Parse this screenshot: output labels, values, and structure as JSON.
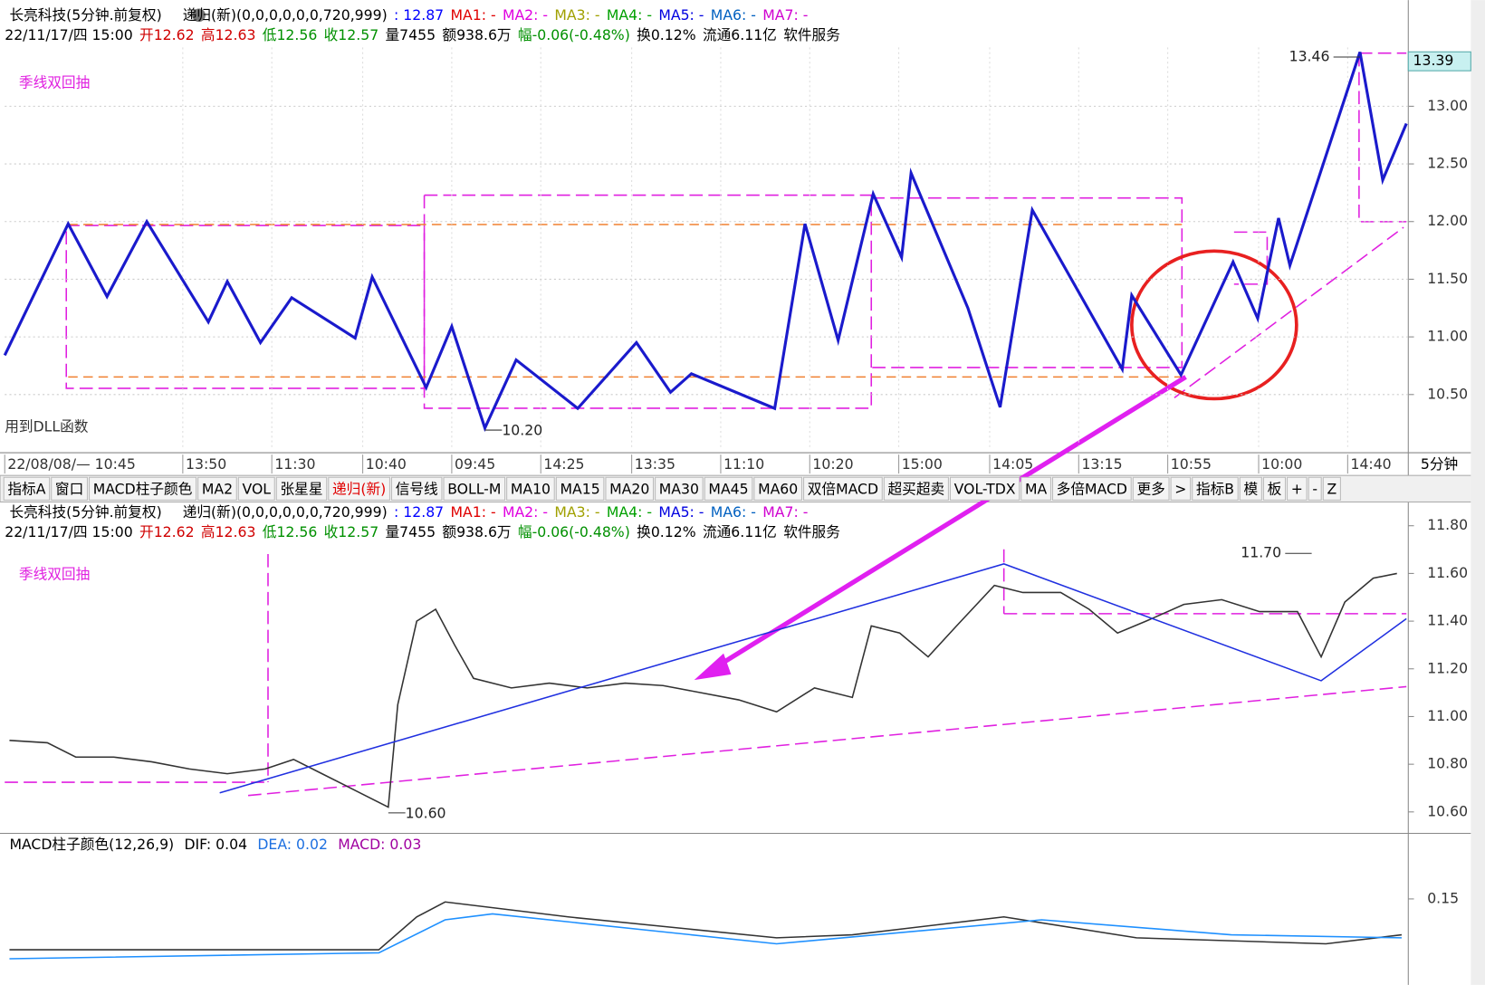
{
  "header": {
    "row1": [
      {
        "text": "长亮科技(5分钟.前复权)",
        "color": "#000"
      },
      {
        "text": "递归(新)(0,0,0,0,0,0,720,999)",
        "color": "#000"
      },
      {
        "text": ": 12.87",
        "color": "#0000ff"
      },
      {
        "text": "MA1: -",
        "color": "#e00000"
      },
      {
        "text": "MA2: -",
        "color": "#e000e0"
      },
      {
        "text": "MA3: -",
        "color": "#a0a000"
      },
      {
        "text": "MA4: -",
        "color": "#00a000"
      },
      {
        "text": "MA5: -",
        "color": "#0000e0"
      },
      {
        "text": "MA6: -",
        "color": "#0060c0"
      },
      {
        "text": "MA7: -",
        "color": "#d000d0"
      }
    ],
    "row2": [
      {
        "text": "22/11/17/四 15:00",
        "color": "#000"
      },
      {
        "text": "开12.62",
        "color": "#d00000"
      },
      {
        "text": "高12.63",
        "color": "#d00000"
      },
      {
        "text": "低12.56",
        "color": "#009000"
      },
      {
        "text": "收12.57",
        "color": "#009000"
      },
      {
        "text": "量7455",
        "color": "#000"
      },
      {
        "text": "额938.6万",
        "color": "#000"
      },
      {
        "text": "幅-0.06(-0.48%)",
        "color": "#009000"
      },
      {
        "text": "换0.12%",
        "color": "#000"
      },
      {
        "text": "流通6.11亿",
        "color": "#000"
      },
      {
        "text": "软件服务",
        "color": "#000"
      }
    ]
  },
  "labels": {
    "strategy": "季线双回抽",
    "dll": "用到DLL函数",
    "period": "5分钟"
  },
  "toolbar": {
    "items": [
      "指标A",
      "窗口",
      "MACD柱子颜色",
      "MA2",
      "VOL",
      "张星星",
      "递归(新)",
      "信号线",
      "BOLL-M",
      "MA10",
      "MA15",
      "MA20",
      "MA30",
      "MA45",
      "MA60",
      "双倍MACD",
      "超买超卖",
      "VOL-TDX",
      "MA",
      "多倍MACD",
      "更多",
      ">",
      "指标B",
      "模",
      "板",
      "+",
      "-",
      "Z"
    ],
    "active": "递归(新)"
  },
  "macd_header": {
    "name": "MACD柱子颜色(12,26,9)",
    "dif": "DIF: 0.04",
    "dea": "DEA: 0.02",
    "macd": "MACD: 0.03"
  },
  "chart_data": [
    {
      "type": "line",
      "xlim": [
        0,
        741
      ],
      "ylim": [
        10.02,
        13.51
      ],
      "yticks": [
        {
          "value": 10.5,
          "label": "10.50"
        },
        {
          "value": 11,
          "label": "11.00"
        },
        {
          "value": 11.5,
          "label": "11.50"
        },
        {
          "value": 12,
          "label": "12.00"
        },
        {
          "value": 12.5,
          "label": "12.50"
        },
        {
          "value": 13,
          "label": "13.00"
        }
      ],
      "xticks": [
        {
          "value": 0,
          "label": "22/08/08/— 10:45"
        },
        {
          "value": 94,
          "label": "13:50"
        },
        {
          "value": 141,
          "label": "11:30"
        },
        {
          "value": 189,
          "label": "10:40"
        },
        {
          "value": 236,
          "label": "09:45"
        },
        {
          "value": 283,
          "label": "14:25"
        },
        {
          "value": 331,
          "label": "13:35"
        },
        {
          "value": 378,
          "label": "11:10"
        },
        {
          "value": 425,
          "label": "10:20"
        },
        {
          "value": 472,
          "label": "15:00"
        },
        {
          "value": 520,
          "label": "14:05"
        },
        {
          "value": 567,
          "label": "13:15"
        },
        {
          "value": 614,
          "label": "10:55"
        },
        {
          "value": 662,
          "label": "10:00"
        },
        {
          "value": 709,
          "label": "14:40"
        }
      ],
      "grid": true,
      "last_price": 13.39,
      "series": [
        {
          "color": "#1a1acc",
          "x": [
            0,
            33.5,
            54,
            75,
            107.5,
            117.5,
            135,
            151.5,
            185,
            194,
            222.5,
            236,
            253.5,
            270,
            302.5,
            333.5,
            351.5,
            362.5,
            406.5,
            422.5,
            440,
            458.5,
            473.5,
            478.5,
            508.5,
            525.5,
            542.5,
            590,
            595,
            621,
            648.5,
            661.5,
            672.5,
            678.5,
            715.5,
            727.5,
            740
          ],
          "values": [
            10.84,
            11.98,
            11.35,
            12.0,
            11.13,
            11.48,
            10.95,
            11.34,
            10.99,
            11.52,
            10.56,
            11.09,
            10.21,
            10.8,
            10.38,
            10.95,
            10.52,
            10.68,
            10.38,
            11.98,
            10.97,
            12.24,
            11.69,
            12.42,
            11.25,
            10.39,
            12.1,
            10.72,
            11.36,
            10.67,
            11.65,
            11.16,
            12.03,
            11.62,
            13.47,
            12.36,
            12.85
          ]
        }
      ],
      "annotations": [
        {
          "x": 715.5,
          "value": 13.46,
          "label": "13.46"
        },
        {
          "x": 253.5,
          "value": 10.2,
          "label": "10.20"
        }
      ]
    },
    {
      "type": "line",
      "xlim": [
        0,
        741
      ],
      "ylim": [
        10.51,
        11.86
      ],
      "yticks": [
        {
          "value": 10.6,
          "label": "10.60"
        },
        {
          "value": 10.8,
          "label": "10.80"
        },
        {
          "value": 11,
          "label": "11.00"
        },
        {
          "value": 11.2,
          "label": "11.20"
        },
        {
          "value": 11.4,
          "label": "11.40"
        },
        {
          "value": 11.6,
          "label": "11.60"
        },
        {
          "value": 11.8,
          "label": "11.80"
        }
      ],
      "grid": false,
      "series": [
        {
          "color": "#333333",
          "x": [
            2.5,
            22.5,
            37.5,
            57.5,
            77.5,
            97.5,
            117.5,
            137.5,
            152.5,
            167.5,
            182.5,
            202.5,
            207.5,
            217.5,
            227.5,
            237.5,
            247.5,
            267.5,
            287.5,
            307.5,
            327.5,
            347.5,
            367.5,
            387.5,
            407.5,
            427.5,
            447.5,
            457.5,
            472.5,
            487.5,
            502.5,
            522.5,
            537.5,
            557.5,
            572.5,
            587.5,
            602.5,
            622.5,
            642.5,
            662.5,
            682.5,
            695,
            707.5,
            722.5,
            735
          ],
          "values": [
            10.9,
            10.89,
            10.83,
            10.83,
            10.81,
            10.78,
            10.76,
            10.78,
            10.82,
            10.76,
            10.7,
            10.62,
            11.05,
            11.4,
            11.45,
            11.3,
            11.16,
            11.12,
            11.14,
            11.12,
            11.14,
            11.13,
            11.1,
            11.07,
            11.02,
            11.12,
            11.08,
            11.38,
            11.35,
            11.25,
            11.38,
            11.55,
            11.52,
            11.52,
            11.45,
            11.35,
            11.4,
            11.47,
            11.49,
            11.44,
            11.44,
            11.25,
            11.48,
            11.58,
            11.6
          ]
        },
        {
          "color": "#2030e0",
          "x": [
            113.5,
            527.5,
            695,
            740
          ],
          "values": [
            10.68,
            11.64,
            11.15,
            11.41
          ]
        }
      ],
      "annotations": [
        {
          "x": 690,
          "value": 11.7,
          "label": "11.70"
        },
        {
          "x": 202.5,
          "value": 10.6,
          "label": "10.60"
        }
      ]
    },
    {
      "type": "line",
      "xlim": [
        0,
        741
      ],
      "ylim": [
        -0.09,
        0.29
      ],
      "yticks": [
        0.15
      ],
      "grid": false,
      "series": [
        {
          "color": "#333333",
          "x": [
            2.5,
            197.5,
            217.5,
            232.5,
            297.5,
            407.5,
            447.5,
            527.5,
            597.5,
            697.5,
            737.5
          ],
          "values": [
            -0.02,
            -0.02,
            0.09,
            0.14,
            0.09,
            0.02,
            0.03,
            0.09,
            0.02,
            0,
            0.03
          ]
        },
        {
          "color": "#1e90ff",
          "x": [
            2.5,
            197.5,
            232.5,
            257.5,
            407.5,
            547.5,
            647.5,
            737.5
          ],
          "values": [
            -0.05,
            -0.03,
            0.08,
            0.1,
            0,
            0.08,
            0.03,
            0.02
          ]
        }
      ],
      "annotations": []
    }
  ]
}
